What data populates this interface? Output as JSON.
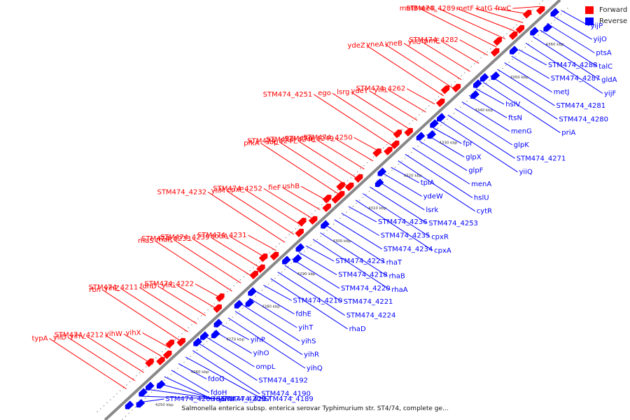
{
  "caption": "Salmonella enterica subsp. enterica serovar Typhimurium str. ST4/74, complete ge...",
  "legend": [
    {
      "label": "Forward",
      "color": "#ff0000"
    },
    {
      "label": "Reverse",
      "color": "#0000ff"
    }
  ],
  "colors": {
    "forward": "#ff0000",
    "reverse": "#0000ff",
    "backbone": "#888888"
  },
  "ticks": [
    "4250 kbp",
    "4260 kbp",
    "4270 kbp",
    "4280 kbp",
    "4290 kbp",
    "4300 kbp",
    "4310 kbp",
    "4320 kbp",
    "4330 kbp",
    "4340 kbp",
    "4350 kbp",
    "4360 kbp"
  ],
  "forward_labels": [
    "frwC",
    "katG",
    "metF",
    "STM474_4289",
    "metL",
    "metB",
    "STM474_4282",
    "rpmE",
    "yiiU",
    "yneB",
    "yneA",
    "ydeZ",
    "STM474_4262",
    "yiiR",
    "ydeY",
    "lsrg",
    "ego",
    "STM474_4251",
    "STM474_4250",
    "STM474_4249",
    "STM474_4248",
    "STM474_4247",
    "sbp",
    "pfkA",
    "ushB",
    "fieF",
    "STM474_4252",
    "cpxP",
    "yiiM",
    "STM474_4232",
    "STM474_4231",
    "sodA",
    "STM474_4239",
    "STM474_4233",
    "rhaR",
    "rhaS",
    "STM474_4222",
    "yiiG",
    "fdhD",
    "STM474_4211",
    "yihZ",
    "rbn",
    "yihX",
    "yihW",
    "STM474_4212",
    "yihV",
    "yiiD",
    "typA"
  ],
  "reverse_labels": [
    "yijP",
    "yijO",
    "ptsA",
    "talC",
    "gldA",
    "yijF",
    "STM474_4288",
    "STM474_4287",
    "metJ",
    "STM474_4281",
    "STM474_4280",
    "priA",
    "hslV",
    "ftsN",
    "menG",
    "glpK",
    "STM474_4271",
    "yiiQ",
    "fpr",
    "glpX",
    "glpF",
    "menA",
    "hslU",
    "cytR",
    "tpiA",
    "ydeW",
    "lsrk",
    "STM474_4253",
    "cpxR",
    "cpxA",
    "STM474_4236",
    "STM474_4235",
    "STM474_4234",
    "rhaT",
    "rhaB",
    "rhaA",
    "STM474_4223",
    "STM474_4218",
    "STM474_4220",
    "STM474_4221",
    "STM474_4224",
    "rhaD",
    "STM474_4210",
    "fdhE",
    "yihT",
    "yihS",
    "yihR",
    "yihQ",
    "yihP",
    "yihO",
    "ompL",
    "STM474_4192",
    "STM474_4190",
    "STM474_4189",
    "fdoG",
    "fdoH",
    "fdoI",
    "STM474_4209",
    "yihU",
    "STM474_4207",
    "STM474_4208"
  ]
}
